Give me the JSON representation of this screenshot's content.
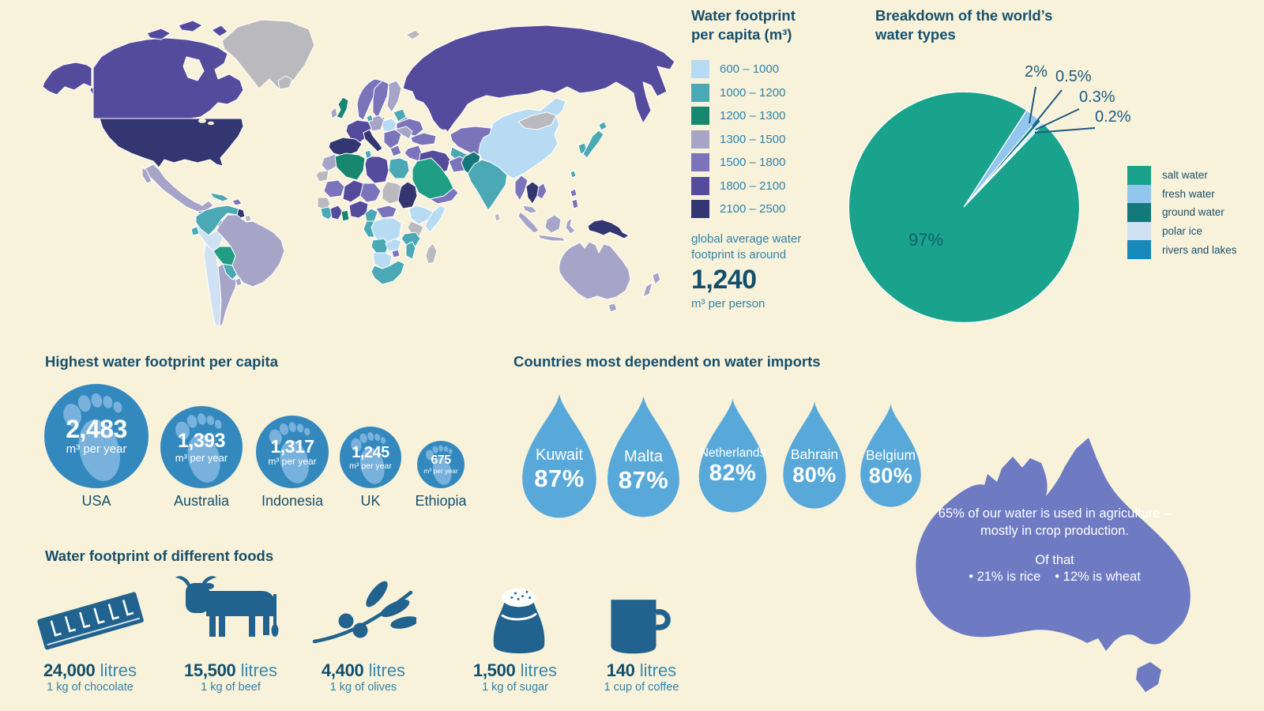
{
  "background_color": "#f9f2db",
  "colors": {
    "heading": "#17506b",
    "body_text": "#2f81a6",
    "value_dark": "#124f6b",
    "circle_blue": "#3389bd",
    "footprint_light": "#77b1dc",
    "drop_blue": "#58a9d9",
    "food_icon_blue": "#21638e",
    "australia_purple": "#6e7ac2",
    "no_data_gray": "#b9b9be"
  },
  "chart_data": [
    {
      "type": "choropleth",
      "title": "Water footprint per capita (m³)",
      "legend_bins": [
        {
          "range": "600 – 1000",
          "color": "#b7dbf3"
        },
        {
          "range": "1000 – 1200",
          "color": "#4aa9b5"
        },
        {
          "range": "1200 – 1300",
          "color": "#18876f"
        },
        {
          "range": "1300 – 1500",
          "color": "#a6a5c8"
        },
        {
          "range": "1500 – 1800",
          "color": "#7b74ba"
        },
        {
          "range": "1800 – 2100",
          "color": "#554b9c"
        },
        {
          "range": "2100 – 2500",
          "color": "#333670"
        }
      ],
      "no_data_color": "#b9b9be",
      "note": "global average water footprint is around",
      "average_value": "1,240",
      "average_unit": "m³ per person"
    },
    {
      "type": "pie",
      "title": "Breakdown of the world’s water types",
      "start_angle_deg": 33,
      "legend_position": "right",
      "slices": [
        {
          "label": "salt water",
          "value": 97,
          "display": "97%",
          "color": "#1aa38c"
        },
        {
          "label": "fresh water",
          "value": 2,
          "display": "2%",
          "color": "#92c6ec"
        },
        {
          "label": "ground water",
          "value": 0.5,
          "display": "0.5%",
          "color": "#15797c"
        },
        {
          "label": "polar ice",
          "value": 0.3,
          "display": "0.3%",
          "color": "#cfe1f2"
        },
        {
          "label": "rivers and lakes",
          "value": 0.2,
          "display": "0.2%",
          "color": "#1788ba"
        }
      ]
    },
    {
      "type": "pictogram-circles",
      "title": "Highest water footprint per capita",
      "unit": "m³ per year",
      "items": [
        {
          "country": "USA",
          "value": 2483,
          "display": "2,483"
        },
        {
          "country": "Australia",
          "value": 1393,
          "display": "1,393"
        },
        {
          "country": "Indonesia",
          "value": 1317,
          "display": "1,317"
        },
        {
          "country": "UK",
          "value": 1245,
          "display": "1,245"
        },
        {
          "country": "Ethiopia",
          "value": 675,
          "display": "675"
        }
      ]
    },
    {
      "type": "pictogram-drops",
      "title": "Countries most dependent on water imports",
      "items": [
        {
          "country": "Kuwait",
          "value": 87,
          "display": "87%"
        },
        {
          "country": "Malta",
          "value": 87,
          "display": "87%"
        },
        {
          "country": "Netherlands",
          "value": 82,
          "display": "82%"
        },
        {
          "country": "Bahrain",
          "value": 80,
          "display": "80%"
        },
        {
          "country": "Belgium",
          "value": 80,
          "display": "80%"
        }
      ]
    },
    {
      "type": "pictogram-foods",
      "title": "Water footprint of different foods",
      "items": [
        {
          "food": "chocolate",
          "display": "24,000",
          "unit": "litres",
          "desc": "1 kg of chocolate"
        },
        {
          "food": "beef",
          "display": "15,500",
          "unit": "litres",
          "desc": "1 kg of beef"
        },
        {
          "food": "olives",
          "display": "4,400",
          "unit": "litres",
          "desc": "1 kg of olives"
        },
        {
          "food": "sugar",
          "display": "1,500",
          "unit": "litres",
          "desc": "1 kg of sugar"
        },
        {
          "food": "coffee",
          "display": "140",
          "unit": "litres",
          "desc": "1 cup of coffee"
        }
      ]
    },
    {
      "type": "annotation",
      "region": "Australia",
      "text": "65% of our water is used in agriculture – mostly in crop production.",
      "subheading": "Of that",
      "bullets": [
        "• 21% is rice",
        "• 12% is wheat"
      ]
    }
  ]
}
